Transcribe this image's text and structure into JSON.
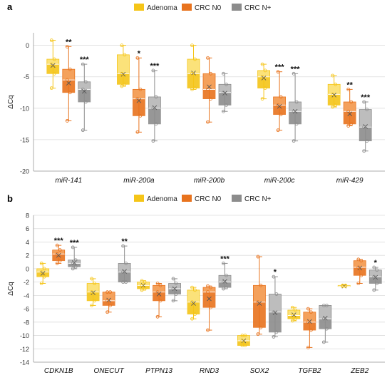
{
  "panels": [
    {
      "label": "a"
    },
    {
      "label": "b"
    }
  ],
  "legend": [
    {
      "name": "Adenoma",
      "color": "#F5C518",
      "light": "#FBE27A"
    },
    {
      "name": "CRC N0",
      "color": "#E8731E",
      "light": "#F4A15C"
    },
    {
      "name": "CRC N+",
      "color": "#8C8C8C",
      "light": "#BDBDBD"
    }
  ],
  "chart_data": [
    {
      "type": "box",
      "panel": "a",
      "ylabel": "ΔCq",
      "ylim": [
        -20,
        2
      ],
      "yticks": [
        0,
        -5,
        -10,
        -15,
        -20
      ],
      "grid": true,
      "legend_position": "top-center",
      "categories": [
        "miR-141",
        "miR-200a",
        "miR-200b",
        "miR-200c",
        "miR-429"
      ],
      "series": [
        {
          "name": "Adenoma",
          "boxes": [
            {
              "min": -6.8,
              "q1": -4.5,
              "median": -3.0,
              "q3": -2.2,
              "max": 0.8,
              "mean": -3.2
            },
            {
              "min": -6.5,
              "q1": -6.2,
              "median": -4.5,
              "q3": -1.5,
              "max": 0.0,
              "mean": -4.6
            },
            {
              "min": -7.0,
              "q1": -6.8,
              "median": -4.5,
              "q3": -2.2,
              "max": 0.0,
              "mean": -4.4
            },
            {
              "min": -8.5,
              "q1": -6.8,
              "median": -5.0,
              "q3": -4.0,
              "max": -3.0,
              "mean": -5.2
            },
            {
              "min": -9.8,
              "q1": -9.5,
              "median": -7.8,
              "q3": -6.2,
              "max": -4.8,
              "mean": -7.9
            }
          ]
        },
        {
          "name": "CRC N0",
          "boxes": [
            {
              "min": -12.0,
              "q1": -7.5,
              "median": -5.5,
              "q3": -3.8,
              "max": -0.2,
              "mean": -6.0
            },
            {
              "min": -13.8,
              "q1": -11.2,
              "median": -8.5,
              "q3": -7.0,
              "max": -2.0,
              "mean": -8.8
            },
            {
              "min": -12.2,
              "q1": -8.5,
              "median": -7.0,
              "q3": -4.5,
              "max": -2.0,
              "mean": -6.6
            },
            {
              "min": -13.5,
              "q1": -11.0,
              "median": -9.5,
              "q3": -8.2,
              "max": -4.2,
              "mean": -9.7
            },
            {
              "min": -12.8,
              "q1": -12.5,
              "median": -10.5,
              "q3": -9.0,
              "max": -7.0,
              "mean": -10.9
            }
          ]
        },
        {
          "name": "CRC N+",
          "boxes": [
            {
              "min": -13.5,
              "q1": -9.0,
              "median": -7.0,
              "q3": -5.8,
              "max": -3.0,
              "mean": -7.3
            },
            {
              "min": -15.2,
              "q1": -12.5,
              "median": -10.0,
              "q3": -8.2,
              "max": -4.0,
              "mean": -9.9
            },
            {
              "min": -10.5,
              "q1": -9.5,
              "median": -7.5,
              "q3": -6.2,
              "max": -4.5,
              "mean": -7.6
            },
            {
              "min": -15.2,
              "q1": -12.5,
              "median": -10.5,
              "q3": -9.0,
              "max": -4.5,
              "mean": -10.5
            },
            {
              "min": -16.8,
              "q1": -15.2,
              "median": -13.0,
              "q3": -10.2,
              "max": -9.0,
              "mean": -12.9
            }
          ]
        }
      ],
      "annotations": [
        {
          "category": "miR-141",
          "series": "CRC N0",
          "text": "**"
        },
        {
          "category": "miR-141",
          "series": "CRC N+",
          "text": "***"
        },
        {
          "category": "miR-200a",
          "series": "CRC N0",
          "text": "*"
        },
        {
          "category": "miR-200a",
          "series": "CRC N+",
          "text": "***"
        },
        {
          "category": "miR-200c",
          "series": "CRC N0",
          "text": "***"
        },
        {
          "category": "miR-200c",
          "series": "CRC N+",
          "text": "***"
        },
        {
          "category": "miR-429",
          "series": "CRC N0",
          "text": "**"
        },
        {
          "category": "miR-429",
          "series": "CRC N+",
          "text": "***"
        }
      ]
    },
    {
      "type": "box",
      "panel": "b",
      "ylabel": "ΔCq",
      "ylim": [
        -14,
        8
      ],
      "yticks": [
        8,
        6,
        4,
        2,
        0,
        -2,
        -4,
        -6,
        -8,
        -10,
        -12,
        -14
      ],
      "grid": true,
      "legend_position": "top-center",
      "categories": [
        "CDKN1B",
        "ONECUT",
        "PTPN13",
        "RND3",
        "SOX2",
        "TGFB2",
        "ZEB2"
      ],
      "series": [
        {
          "name": "Adenoma",
          "boxes": [
            {
              "min": -2.2,
              "q1": -1.2,
              "median": -0.5,
              "q3": 0.0,
              "max": 0.8,
              "mean": -0.7
            },
            {
              "min": -5.5,
              "q1": -4.8,
              "median": -3.5,
              "q3": -2.2,
              "max": -1.5,
              "mean": -3.6
            },
            {
              "min": -3.2,
              "q1": -3.0,
              "median": -2.5,
              "q3": -2.0,
              "max": -1.8,
              "mean": -2.5
            },
            {
              "min": -7.5,
              "q1": -6.8,
              "median": -5.0,
              "q3": -3.2,
              "max": -2.8,
              "mean": -5.2
            },
            {
              "min": -11.5,
              "q1": -11.5,
              "median": -10.8,
              "q3": -10.0,
              "max": -10.0,
              "mean": -10.8
            },
            {
              "min": -7.8,
              "q1": -7.5,
              "median": -7.0,
              "q3": -6.2,
              "max": -5.8,
              "mean": -6.9
            },
            {
              "min": -2.6,
              "q1": -2.6,
              "median": -2.6,
              "q3": -2.5,
              "max": -2.5,
              "mean": -2.6
            }
          ]
        },
        {
          "name": "CRC N0",
          "boxes": [
            {
              "min": 0.8,
              "q1": 1.2,
              "median": 2.2,
              "q3": 2.8,
              "max": 3.5,
              "mean": 2.0
            },
            {
              "min": -6.5,
              "q1": -5.5,
              "median": -4.8,
              "q3": -3.5,
              "max": -3.5,
              "mean": -4.7
            },
            {
              "min": -7.2,
              "q1": -4.8,
              "median": -3.5,
              "q3": -2.5,
              "max": -2.2,
              "mean": -3.8
            },
            {
              "min": -9.2,
              "q1": -5.8,
              "median": -3.5,
              "q3": -2.8,
              "max": -2.6,
              "mean": -4.5
            },
            {
              "min": -9.8,
              "q1": -8.8,
              "median": -5.0,
              "q3": -2.5,
              "max": 1.8,
              "mean": -5.2
            },
            {
              "min": -11.8,
              "q1": -9.2,
              "median": -8.0,
              "q3": -6.5,
              "max": -6.0,
              "mean": -7.9
            },
            {
              "min": -2.2,
              "q1": -1.0,
              "median": 0.2,
              "q3": 1.2,
              "max": 1.4,
              "mean": 0.1
            }
          ]
        },
        {
          "name": "CRC N+",
          "boxes": [
            {
              "min": 0.0,
              "q1": 0.3,
              "median": 0.8,
              "q3": 1.3,
              "max": 3.2,
              "mean": 0.9
            },
            {
              "min": -2.0,
              "q1": -2.0,
              "median": -0.5,
              "q3": 0.8,
              "max": 3.4,
              "mean": -0.4
            },
            {
              "min": -4.8,
              "q1": -3.8,
              "median": -3.0,
              "q3": -2.2,
              "max": -1.5,
              "mean": -3.0
            },
            {
              "min": -3.0,
              "q1": -2.8,
              "median": -2.0,
              "q3": -1.0,
              "max": 0.8,
              "mean": -1.9
            },
            {
              "min": -10.2,
              "q1": -9.5,
              "median": -6.5,
              "q3": -3.8,
              "max": -1.2,
              "mean": -6.6
            },
            {
              "min": -11.0,
              "q1": -9.0,
              "median": -7.5,
              "q3": -5.5,
              "max": -5.5,
              "mean": -7.4
            },
            {
              "min": -3.2,
              "q1": -2.2,
              "median": -1.2,
              "q3": -0.2,
              "max": 0.2,
              "mean": -1.3
            }
          ]
        }
      ],
      "annotations": [
        {
          "category": "CDKN1B",
          "series": "CRC N0",
          "text": "***"
        },
        {
          "category": "CDKN1B",
          "series": "CRC N+",
          "text": "***"
        },
        {
          "category": "ONECUT",
          "series": "CRC N+",
          "text": "**"
        },
        {
          "category": "RND3",
          "series": "CRC N+",
          "text": "***"
        },
        {
          "category": "SOX2",
          "series": "CRC N+",
          "text": "*"
        },
        {
          "category": "ZEB2",
          "series": "CRC N+",
          "text": "*"
        }
      ]
    }
  ]
}
